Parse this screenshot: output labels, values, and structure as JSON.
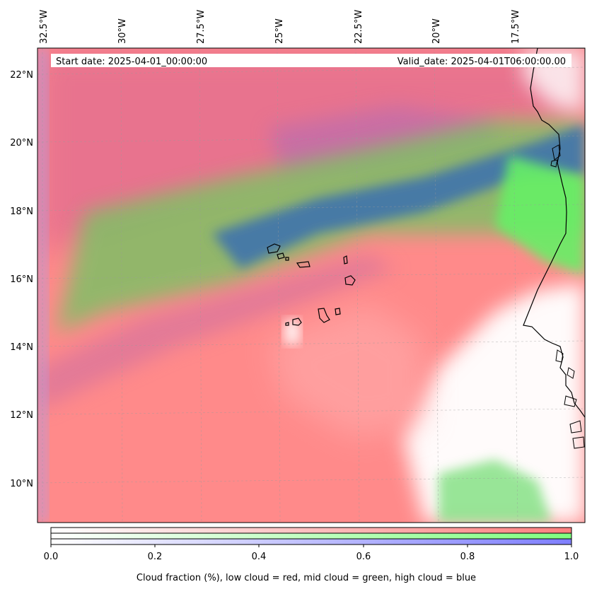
{
  "header": {
    "start_date": "Start date: 2025-04-01_00:00:00",
    "valid_date": "Valid_date: 2025-04-01T06:00:00.00"
  },
  "axes": {
    "lon_labels": [
      "32.5°W",
      "30°W",
      "27.5°W",
      "25°W",
      "22.5°W",
      "20°W",
      "17.5°W"
    ],
    "lat_labels": [
      "22°N",
      "20°N",
      "18°N",
      "16°N",
      "14°N",
      "12°N",
      "10°N"
    ]
  },
  "colorbar": {
    "ticks": [
      "0.0",
      "0.2",
      "0.4",
      "0.6",
      "0.8",
      "1.0"
    ],
    "caption": "Cloud fraction (%), low cloud = red, mid cloud = green, high cloud = blue",
    "colors": {
      "low": "#ff7f7f",
      "mid": "#7fff7f",
      "high": "#7f7fff"
    }
  },
  "map": {
    "colors": {
      "low_cloud": "#ff8a8a",
      "mixed_low_high": "#e8708c",
      "mid_cloud": "#6ef06e",
      "high_mid": "#3c6fb4",
      "clear": "#ffffff",
      "coastline": "#000000"
    }
  }
}
